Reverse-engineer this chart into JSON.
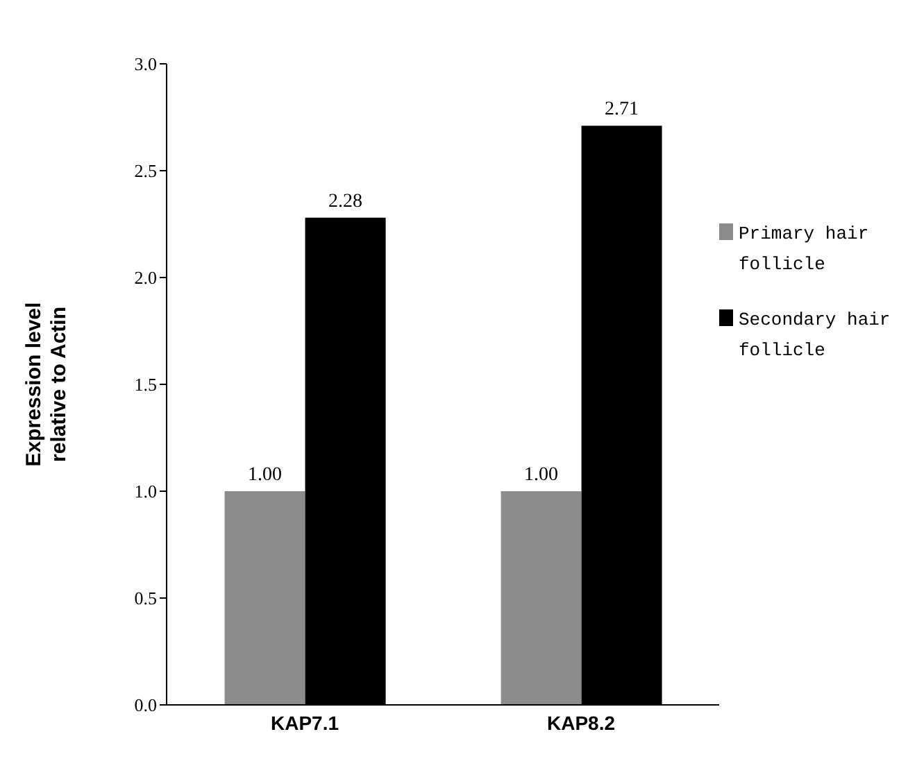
{
  "chart_data": {
    "type": "bar",
    "categories": [
      "KAP7.1",
      "KAP8.2"
    ],
    "ylabel": "Expression level\nrelative to Actin",
    "series": [
      {
        "name": "Primary hair follicle",
        "color": "#8c8c8c",
        "values": [
          1,
          1
        ],
        "value_labels": [
          "1.00",
          "1.00"
        ]
      },
      {
        "name": "Secondary hair follicle",
        "color": "#000000",
        "values": [
          2.28,
          2.71
        ],
        "value_labels": [
          "2.28",
          "2.71"
        ]
      }
    ],
    "ylim": [
      0,
      3
    ],
    "yticks": [
      {
        "value": 0,
        "label": "0.0"
      },
      {
        "value": 0.5,
        "label": "0.5"
      },
      {
        "value": 1,
        "label": "1.0"
      },
      {
        "value": 1.5,
        "label": "1.5"
      },
      {
        "value": 2,
        "label": "2.0"
      },
      {
        "value": 2.5,
        "label": "2.5"
      },
      {
        "value": 3,
        "label": "3.0"
      }
    ],
    "grid": false,
    "legend": "right"
  }
}
